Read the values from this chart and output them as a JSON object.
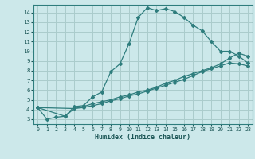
{
  "title": "",
  "xlabel": "Humidex (Indice chaleur)",
  "bg_color": "#cce8ea",
  "grid_color": "#aacccc",
  "line_color": "#2e7d7d",
  "xlim": [
    -0.5,
    23.5
  ],
  "ylim": [
    2.5,
    14.8
  ],
  "xticks": [
    0,
    1,
    2,
    3,
    4,
    5,
    6,
    7,
    8,
    9,
    10,
    11,
    12,
    13,
    14,
    15,
    16,
    17,
    18,
    19,
    20,
    21,
    22,
    23
  ],
  "yticks": [
    3,
    4,
    5,
    6,
    7,
    8,
    9,
    10,
    11,
    12,
    13,
    14
  ],
  "line1_x": [
    0,
    1,
    2,
    3,
    4,
    5,
    6,
    7,
    8,
    9,
    10,
    11,
    12,
    13,
    14,
    15,
    16,
    17,
    18,
    19,
    20,
    21,
    22,
    23
  ],
  "line1_y": [
    4.2,
    3.0,
    3.2,
    3.3,
    4.3,
    4.4,
    5.3,
    5.8,
    7.9,
    8.7,
    10.8,
    13.5,
    14.5,
    14.2,
    14.4,
    14.1,
    13.5,
    12.7,
    12.1,
    11.0,
    10.0,
    10.0,
    9.5,
    8.8
  ],
  "line2_x": [
    0,
    3,
    4,
    5,
    6,
    7,
    8,
    9,
    10,
    11,
    12,
    13,
    14,
    15,
    16,
    17,
    18,
    19,
    20,
    21,
    22,
    23
  ],
  "line2_y": [
    4.2,
    3.3,
    4.1,
    4.3,
    4.6,
    4.8,
    5.0,
    5.3,
    5.5,
    5.8,
    6.0,
    6.3,
    6.7,
    7.0,
    7.4,
    7.7,
    8.0,
    8.3,
    8.7,
    9.3,
    9.8,
    9.5
  ],
  "line3_x": [
    0,
    4,
    5,
    6,
    7,
    8,
    9,
    10,
    11,
    12,
    13,
    14,
    15,
    16,
    17,
    18,
    19,
    20,
    21,
    22,
    23
  ],
  "line3_y": [
    4.2,
    4.1,
    4.2,
    4.4,
    4.6,
    4.9,
    5.1,
    5.4,
    5.6,
    5.9,
    6.2,
    6.5,
    6.8,
    7.1,
    7.5,
    7.9,
    8.2,
    8.5,
    8.8,
    8.7,
    8.5
  ]
}
